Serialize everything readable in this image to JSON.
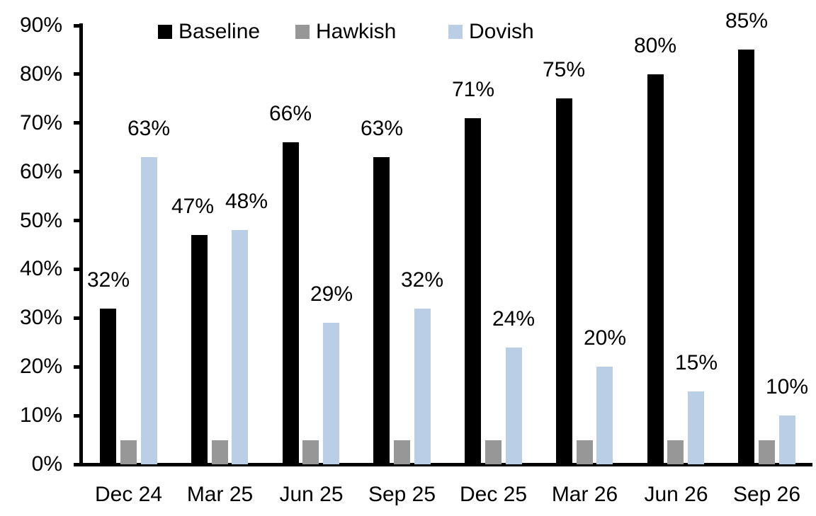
{
  "chart_data": {
    "type": "bar",
    "title": "",
    "categories": [
      "Dec 24",
      "Mar 25",
      "Jun 25",
      "Sep 25",
      "Dec 25",
      "Mar 26",
      "Jun 26",
      "Sep 26"
    ],
    "series": [
      {
        "name": "Baseline",
        "color": "#000000",
        "values": [
          32,
          47,
          66,
          63,
          71,
          75,
          80,
          85
        ],
        "data_labels": [
          "32%",
          "47%",
          "66%",
          "63%",
          "71%",
          "75%",
          "80%",
          "85%"
        ]
      },
      {
        "name": "Hawkish",
        "color": "#979797",
        "values": [
          5,
          5,
          5,
          5,
          5,
          5,
          5,
          5
        ],
        "data_labels": [
          "",
          "",
          "",
          "",
          "",
          "",
          "",
          ""
        ]
      },
      {
        "name": "Dovish",
        "color": "#BACEE5",
        "values": [
          63,
          48,
          29,
          32,
          24,
          20,
          15,
          10
        ],
        "data_labels": [
          "63%",
          "48%",
          "29%",
          "32%",
          "24%",
          "20%",
          "15%",
          "10%"
        ]
      }
    ],
    "y_axis": {
      "min": 0,
      "max": 90,
      "step": 10,
      "tick_labels": [
        "0%",
        "10%",
        "20%",
        "30%",
        "40%",
        "50%",
        "60%",
        "70%",
        "80%",
        "90%"
      ]
    },
    "ylim": [
      0,
      90
    ],
    "xlabel": "",
    "ylabel": "",
    "grid": false,
    "legend": {
      "position": "top",
      "entries": [
        {
          "label": "Baseline",
          "color": "#000000"
        },
        {
          "label": "Hawkish",
          "color": "#979797"
        },
        {
          "label": "Dovish",
          "color": "#BACEE5"
        }
      ]
    }
  }
}
